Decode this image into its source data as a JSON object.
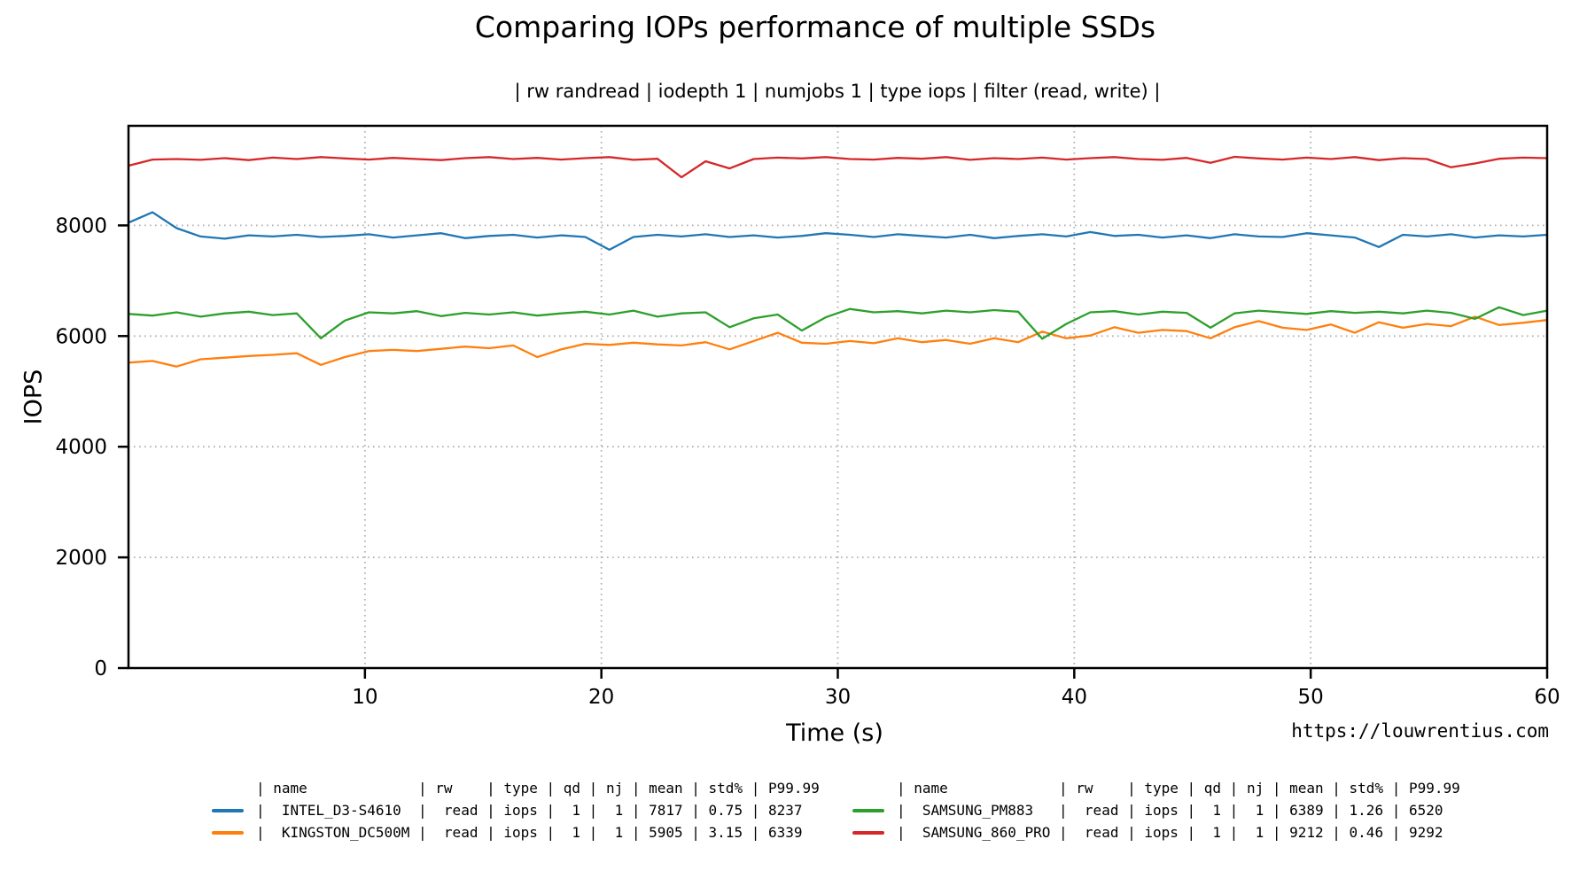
{
  "chart_data": {
    "type": "line",
    "title": "Comparing IOPs performance of multiple SSDs",
    "subtitle": "| rw randread | iodepth 1 | numjobs 1 | type iops | filter (read, write) |",
    "xlabel": "Time (s)",
    "ylabel": "IOPS",
    "credit_url": "https://louwrentius.com",
    "xlim": [
      0,
      60
    ],
    "ylim": [
      0,
      9800
    ],
    "xticks": [
      10,
      20,
      30,
      40,
      50,
      60
    ],
    "yticks": [
      0,
      2000,
      4000,
      6000,
      8000
    ],
    "grid": true,
    "grid_color": "#b0b0b0",
    "axis_color": "#000000",
    "x_sampling": "60 samples evenly spaced over 0-60 s",
    "series": [
      {
        "name": "INTEL_D3-S4610",
        "color": "#1f77b4",
        "values": [
          8050,
          8237,
          7950,
          7800,
          7760,
          7820,
          7800,
          7830,
          7790,
          7810,
          7840,
          7780,
          7820,
          7860,
          7770,
          7810,
          7830,
          7780,
          7820,
          7790,
          7560,
          7790,
          7830,
          7800,
          7840,
          7790,
          7820,
          7780,
          7810,
          7860,
          7830,
          7790,
          7840,
          7810,
          7780,
          7830,
          7770,
          7810,
          7840,
          7800,
          7880,
          7810,
          7830,
          7780,
          7820,
          7770,
          7840,
          7800,
          7790,
          7860,
          7820,
          7780,
          7610,
          7830,
          7800,
          7840,
          7780,
          7820,
          7800,
          7830
        ]
      },
      {
        "name": "KINGSTON_DC500M",
        "color": "#ff7f0e",
        "values": [
          5520,
          5550,
          5450,
          5580,
          5610,
          5640,
          5660,
          5690,
          5480,
          5620,
          5730,
          5750,
          5730,
          5770,
          5810,
          5780,
          5830,
          5620,
          5760,
          5860,
          5840,
          5880,
          5850,
          5830,
          5890,
          5760,
          5910,
          6060,
          5880,
          5860,
          5910,
          5870,
          5960,
          5890,
          5930,
          5860,
          5960,
          5890,
          6080,
          5960,
          6010,
          6160,
          6060,
          6110,
          6090,
          5960,
          6160,
          6270,
          6150,
          6110,
          6210,
          6060,
          6250,
          6150,
          6220,
          6180,
          6350,
          6200,
          6240,
          6290
        ]
      },
      {
        "name": "SAMSUNG_PM883",
        "color": "#2ca02c",
        "values": [
          6400,
          6370,
          6430,
          6350,
          6410,
          6440,
          6380,
          6410,
          5960,
          6280,
          6430,
          6410,
          6450,
          6360,
          6420,
          6390,
          6430,
          6370,
          6410,
          6440,
          6390,
          6460,
          6350,
          6410,
          6430,
          6160,
          6320,
          6390,
          6100,
          6340,
          6490,
          6430,
          6450,
          6410,
          6460,
          6430,
          6470,
          6440,
          5950,
          6220,
          6430,
          6450,
          6390,
          6440,
          6420,
          6150,
          6410,
          6460,
          6430,
          6400,
          6450,
          6420,
          6440,
          6410,
          6460,
          6420,
          6310,
          6520,
          6380,
          6460
        ]
      },
      {
        "name": "SAMSUNG_860_PRO",
        "color": "#d62728",
        "values": [
          9080,
          9190,
          9200,
          9185,
          9215,
          9180,
          9225,
          9200,
          9235,
          9210,
          9190,
          9220,
          9200,
          9180,
          9215,
          9235,
          9200,
          9220,
          9190,
          9215,
          9235,
          9185,
          9205,
          8870,
          9160,
          9030,
          9200,
          9225,
          9210,
          9235,
          9200,
          9190,
          9220,
          9205,
          9235,
          9185,
          9215,
          9200,
          9225,
          9190,
          9215,
          9235,
          9200,
          9185,
          9220,
          9130,
          9240,
          9210,
          9190,
          9225,
          9200,
          9235,
          9180,
          9215,
          9200,
          9050,
          9120,
          9205,
          9225,
          9215
        ]
      }
    ],
    "legend": {
      "columns": [
        "name",
        "rw",
        "type",
        "qd",
        "nj",
        "mean",
        "std%",
        "P99.99"
      ],
      "left_rows": [
        {
          "color": "#1f77b4",
          "name": "INTEL_D3-S4610",
          "rw": "read",
          "type": "iops",
          "qd": "1",
          "nj": "1",
          "mean": "7817",
          "std_pct": "0.75",
          "p99_99": "8237"
        },
        {
          "color": "#ff7f0e",
          "name": "KINGSTON_DC500M",
          "rw": "read",
          "type": "iops",
          "qd": "1",
          "nj": "1",
          "mean": "5905",
          "std_pct": "3.15",
          "p99_99": "6339"
        }
      ],
      "right_rows": [
        {
          "color": "#2ca02c",
          "name": "SAMSUNG_PM883",
          "rw": "read",
          "type": "iops",
          "qd": "1",
          "nj": "1",
          "mean": "6389",
          "std_pct": "1.26",
          "p99_99": "6520"
        },
        {
          "color": "#d62728",
          "name": "SAMSUNG_860_PRO",
          "rw": "read",
          "type": "iops",
          "qd": "1",
          "nj": "1",
          "mean": "9212",
          "std_pct": "0.46",
          "p99_99": "9292"
        }
      ]
    }
  }
}
